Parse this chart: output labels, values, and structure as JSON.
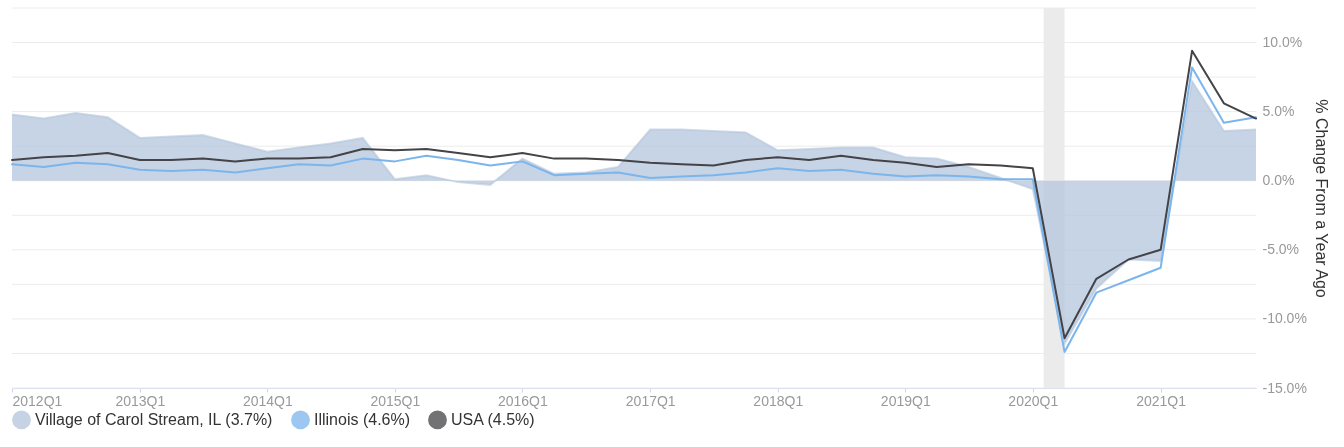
{
  "chart_data": {
    "type": "line",
    "ylabel": "% Change From a Year Ago",
    "x": [
      "2012-01",
      "2012-04",
      "2012-07",
      "2012-10",
      "2013-01",
      "2013-04",
      "2013-07",
      "2013-10",
      "2014-01",
      "2014-04",
      "2014-07",
      "2014-10",
      "2015-01",
      "2015-04",
      "2015-07",
      "2015-10",
      "2016-01",
      "2016-04",
      "2016-07",
      "2016-10",
      "2017-01",
      "2017-04",
      "2017-07",
      "2017-10",
      "2018-01",
      "2018-04",
      "2018-07",
      "2018-10",
      "2019-01",
      "2019-04",
      "2019-07",
      "2019-10",
      "2020-01",
      "2020-04",
      "2020-07",
      "2020-10",
      "2021-01",
      "2021-04",
      "2021-07",
      "2021-10"
    ],
    "series": [
      {
        "name": "Village of Carol Stream, IL (3.7%)",
        "type": "area",
        "color": "#b3c5dc",
        "values": [
          4.8,
          4.5,
          4.9,
          4.6,
          3.1,
          3.2,
          3.3,
          2.7,
          2.1,
          2.4,
          2.7,
          3.1,
          0.1,
          0.4,
          -0.1,
          -0.3,
          1.6,
          0.5,
          0.6,
          1.0,
          3.7,
          3.7,
          3.6,
          3.5,
          2.2,
          2.3,
          2.4,
          2.4,
          1.7,
          1.6,
          1.0,
          0.2,
          -0.6,
          -11.8,
          -7.8,
          -5.7,
          -5.8,
          7.2,
          3.6,
          3.7
        ]
      },
      {
        "name": "Illinois (4.6%)",
        "type": "line",
        "color": "#7cb5ec",
        "values": [
          1.2,
          1.0,
          1.3,
          1.2,
          0.8,
          0.7,
          0.8,
          0.6,
          0.9,
          1.2,
          1.1,
          1.6,
          1.4,
          1.8,
          1.5,
          1.1,
          1.4,
          0.4,
          0.5,
          0.6,
          0.2,
          0.3,
          0.4,
          0.6,
          0.9,
          0.7,
          0.8,
          0.5,
          0.3,
          0.4,
          0.3,
          0.1,
          0.1,
          -12.4,
          -8.1,
          -7.2,
          -6.3,
          8.2,
          4.2,
          4.6
        ]
      },
      {
        "name": "USA (4.5%)",
        "type": "line",
        "color": "#434348",
        "values": [
          1.5,
          1.7,
          1.8,
          2.0,
          1.5,
          1.5,
          1.6,
          1.4,
          1.6,
          1.6,
          1.7,
          2.3,
          2.2,
          2.3,
          2.0,
          1.7,
          2.0,
          1.6,
          1.6,
          1.5,
          1.3,
          1.2,
          1.1,
          1.5,
          1.7,
          1.5,
          1.8,
          1.5,
          1.3,
          1.0,
          1.2,
          1.1,
          0.9,
          -11.4,
          -7.1,
          -5.7,
          -5.0,
          9.4,
          5.6,
          4.5
        ]
      }
    ],
    "xlim": [
      "2012-01",
      "2021-10"
    ],
    "xticks": [
      {
        "value": "2012-01",
        "label": "2012Q1"
      },
      {
        "value": "2013-01",
        "label": "2013Q1"
      },
      {
        "value": "2014-01",
        "label": "2014Q1"
      },
      {
        "value": "2015-01",
        "label": "2015Q1"
      },
      {
        "value": "2016-01",
        "label": "2016Q1"
      },
      {
        "value": "2017-01",
        "label": "2017Q1"
      },
      {
        "value": "2018-01",
        "label": "2018Q1"
      },
      {
        "value": "2019-01",
        "label": "2019Q1"
      },
      {
        "value": "2020-01",
        "label": "2020Q1"
      },
      {
        "value": "2021-01",
        "label": "2021Q1"
      }
    ],
    "ylim": [
      -15,
      12.5
    ],
    "yticks": [
      {
        "value": -15,
        "label": "-15.0%"
      },
      {
        "value": -12.5,
        "label": null
      },
      {
        "value": -10,
        "label": "-10.0%"
      },
      {
        "value": -7.5,
        "label": null
      },
      {
        "value": -5,
        "label": "-5.0%"
      },
      {
        "value": -2.5,
        "label": null
      },
      {
        "value": 0,
        "label": "0.0%"
      },
      {
        "value": 2.5,
        "label": null
      },
      {
        "value": 5,
        "label": "5.0%"
      },
      {
        "value": 7.5,
        "label": null
      },
      {
        "value": 10,
        "label": "10.0%"
      },
      {
        "value": 12.5,
        "label": null
      }
    ],
    "bands": [
      {
        "axis": "x",
        "from": "2020-02",
        "to": "2020-04",
        "color": "#ebebeb"
      }
    ],
    "grid": "y",
    "legend": "bottom"
  }
}
